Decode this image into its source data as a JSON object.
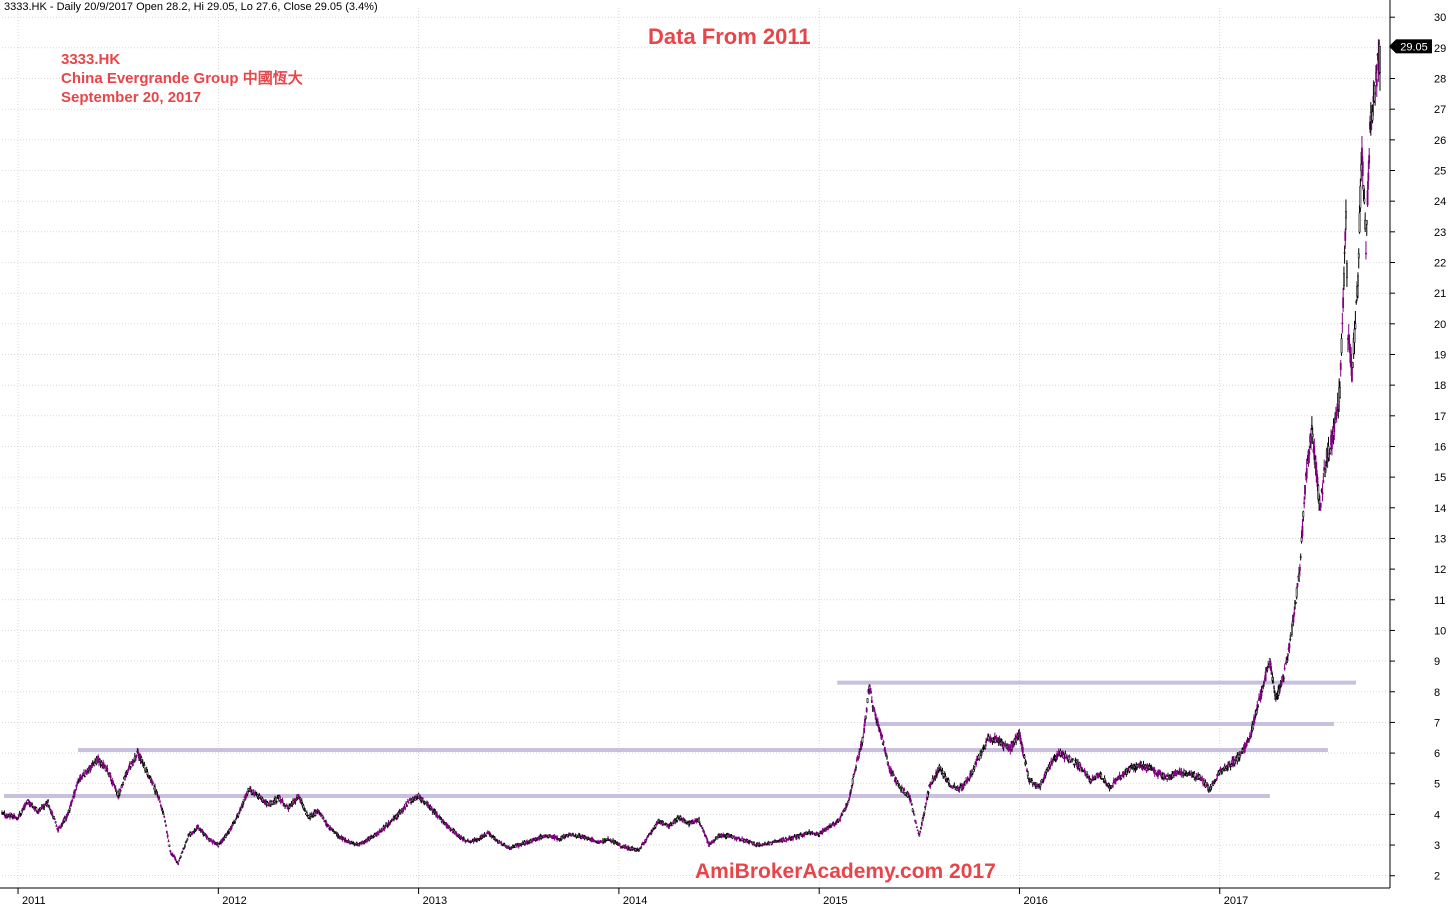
{
  "header": "3333.HK - Daily 20/9/2017 Open 28.2, Hi 29.05, Lo 27.6, Close 29.05 (3.4%)",
  "title": "Data From 2011",
  "info": {
    "ticker": "3333.HK",
    "company": "China Evergrande Group 中國恆大",
    "date": "September 20, 2017"
  },
  "watermark": "AmiBrokerAcademy.com  2017",
  "colors": {
    "text_accent": "#e8454a",
    "up_candle": "#000000",
    "down_candle": "#800080",
    "support_lines": "#c8c0dc",
    "grid": "#c0c0c0"
  },
  "chart_data": {
    "type": "line",
    "chart_style": "candlestick",
    "title": "Data From 2011",
    "xlabel": "",
    "ylabel": "",
    "x_ticks": [
      "2011",
      "2012",
      "2013",
      "2014",
      "2015",
      "2016",
      "2017"
    ],
    "y_ticks": [
      2,
      3,
      4,
      5,
      6,
      7,
      8,
      9,
      10,
      11,
      12,
      13,
      14,
      15,
      16,
      17,
      18,
      19,
      20,
      21,
      22,
      23,
      24,
      25,
      26,
      27,
      28,
      29,
      30
    ],
    "ylim": [
      1.6,
      30.3
    ],
    "xlim": [
      2010.92,
      2017.85
    ],
    "grid": true,
    "last_price_label": "29.05",
    "last_price": 29.05,
    "series": [
      {
        "values": [
          [
            2010.92,
            4.0
          ],
          [
            2011.0,
            3.9
          ],
          [
            2011.05,
            4.45
          ],
          [
            2011.1,
            4.1
          ],
          [
            2011.15,
            4.4
          ],
          [
            2011.2,
            3.5
          ],
          [
            2011.25,
            4.0
          ],
          [
            2011.3,
            5.1
          ],
          [
            2011.35,
            5.45
          ],
          [
            2011.4,
            5.8
          ],
          [
            2011.45,
            5.4
          ],
          [
            2011.5,
            4.6
          ],
          [
            2011.55,
            5.5
          ],
          [
            2011.6,
            6.0
          ],
          [
            2011.65,
            5.3
          ],
          [
            2011.7,
            4.6
          ],
          [
            2011.73,
            3.9
          ],
          [
            2011.76,
            2.8
          ],
          [
            2011.8,
            2.4
          ],
          [
            2011.85,
            3.3
          ],
          [
            2011.9,
            3.6
          ],
          [
            2011.95,
            3.2
          ],
          [
            2012.0,
            3.0
          ],
          [
            2012.05,
            3.4
          ],
          [
            2012.1,
            4.0
          ],
          [
            2012.15,
            4.8
          ],
          [
            2012.2,
            4.6
          ],
          [
            2012.25,
            4.3
          ],
          [
            2012.3,
            4.55
          ],
          [
            2012.35,
            4.2
          ],
          [
            2012.4,
            4.6
          ],
          [
            2012.45,
            3.9
          ],
          [
            2012.5,
            4.1
          ],
          [
            2012.55,
            3.6
          ],
          [
            2012.6,
            3.3
          ],
          [
            2012.65,
            3.1
          ],
          [
            2012.7,
            3.0
          ],
          [
            2012.75,
            3.2
          ],
          [
            2012.8,
            3.4
          ],
          [
            2012.85,
            3.7
          ],
          [
            2012.9,
            4.0
          ],
          [
            2012.95,
            4.4
          ],
          [
            2013.0,
            4.6
          ],
          [
            2013.05,
            4.3
          ],
          [
            2013.1,
            3.9
          ],
          [
            2013.15,
            3.6
          ],
          [
            2013.2,
            3.3
          ],
          [
            2013.25,
            3.1
          ],
          [
            2013.3,
            3.2
          ],
          [
            2013.35,
            3.4
          ],
          [
            2013.4,
            3.1
          ],
          [
            2013.45,
            2.9
          ],
          [
            2013.5,
            3.0
          ],
          [
            2013.55,
            3.1
          ],
          [
            2013.6,
            3.25
          ],
          [
            2013.65,
            3.3
          ],
          [
            2013.7,
            3.2
          ],
          [
            2013.75,
            3.35
          ],
          [
            2013.8,
            3.3
          ],
          [
            2013.85,
            3.2
          ],
          [
            2013.9,
            3.1
          ],
          [
            2013.95,
            3.2
          ],
          [
            2014.0,
            3.0
          ],
          [
            2014.05,
            2.9
          ],
          [
            2014.1,
            2.85
          ],
          [
            2014.15,
            3.3
          ],
          [
            2014.2,
            3.8
          ],
          [
            2014.25,
            3.6
          ],
          [
            2014.3,
            3.9
          ],
          [
            2014.35,
            3.7
          ],
          [
            2014.4,
            3.8
          ],
          [
            2014.45,
            3.0
          ],
          [
            2014.5,
            3.3
          ],
          [
            2014.55,
            3.3
          ],
          [
            2014.6,
            3.2
          ],
          [
            2014.65,
            3.1
          ],
          [
            2014.7,
            3.0
          ],
          [
            2014.75,
            3.05
          ],
          [
            2014.8,
            3.15
          ],
          [
            2014.85,
            3.2
          ],
          [
            2014.9,
            3.3
          ],
          [
            2014.95,
            3.4
          ],
          [
            2015.0,
            3.35
          ],
          [
            2015.05,
            3.6
          ],
          [
            2015.1,
            3.8
          ],
          [
            2015.15,
            4.5
          ],
          [
            2015.18,
            5.5
          ],
          [
            2015.22,
            6.5
          ],
          [
            2015.25,
            8.2
          ],
          [
            2015.28,
            7.2
          ],
          [
            2015.31,
            6.6
          ],
          [
            2015.35,
            5.5
          ],
          [
            2015.4,
            4.9
          ],
          [
            2015.45,
            4.6
          ],
          [
            2015.5,
            3.3
          ],
          [
            2015.55,
            4.9
          ],
          [
            2015.6,
            5.5
          ],
          [
            2015.65,
            5.0
          ],
          [
            2015.7,
            4.8
          ],
          [
            2015.75,
            5.2
          ],
          [
            2015.8,
            5.9
          ],
          [
            2015.85,
            6.5
          ],
          [
            2015.9,
            6.4
          ],
          [
            2015.95,
            6.1
          ],
          [
            2016.0,
            6.6
          ],
          [
            2016.05,
            5.1
          ],
          [
            2016.1,
            4.9
          ],
          [
            2016.15,
            5.6
          ],
          [
            2016.2,
            6.0
          ],
          [
            2016.25,
            5.8
          ],
          [
            2016.3,
            5.6
          ],
          [
            2016.35,
            5.1
          ],
          [
            2016.4,
            5.3
          ],
          [
            2016.45,
            4.9
          ],
          [
            2016.5,
            5.2
          ],
          [
            2016.55,
            5.5
          ],
          [
            2016.6,
            5.6
          ],
          [
            2016.65,
            5.5
          ],
          [
            2016.7,
            5.3
          ],
          [
            2016.75,
            5.2
          ],
          [
            2016.8,
            5.4
          ],
          [
            2016.85,
            5.3
          ],
          [
            2016.9,
            5.2
          ],
          [
            2016.95,
            4.8
          ],
          [
            2017.0,
            5.4
          ],
          [
            2017.05,
            5.6
          ],
          [
            2017.1,
            5.9
          ],
          [
            2017.15,
            6.5
          ],
          [
            2017.2,
            7.8
          ],
          [
            2017.25,
            9.0
          ],
          [
            2017.28,
            7.8
          ],
          [
            2017.32,
            8.5
          ],
          [
            2017.36,
            10.0
          ],
          [
            2017.4,
            12.0
          ],
          [
            2017.43,
            15.0
          ],
          [
            2017.46,
            16.6
          ],
          [
            2017.5,
            14.0
          ],
          [
            2017.53,
            15.5
          ],
          [
            2017.56,
            16.2
          ],
          [
            2017.6,
            17.8
          ],
          [
            2017.62,
            21.3
          ],
          [
            2017.63,
            23.6
          ],
          [
            2017.64,
            19.8
          ],
          [
            2017.66,
            18.4
          ],
          [
            2017.69,
            21.5
          ],
          [
            2017.71,
            25.8
          ],
          [
            2017.73,
            22.6
          ],
          [
            2017.75,
            26.2
          ],
          [
            2017.78,
            28.0
          ],
          [
            2017.8,
            29.05
          ]
        ]
      }
    ],
    "support_resistance_lines": [
      {
        "y": 4.6,
        "x_start": 2010.93,
        "x_end": 2017.25
      },
      {
        "y": 6.1,
        "x_start": 2011.3,
        "x_end": 2017.54
      },
      {
        "y": 6.95,
        "x_start": 2015.22,
        "x_end": 2017.57
      },
      {
        "y": 8.3,
        "x_start": 2015.09,
        "x_end": 2017.68
      }
    ]
  }
}
